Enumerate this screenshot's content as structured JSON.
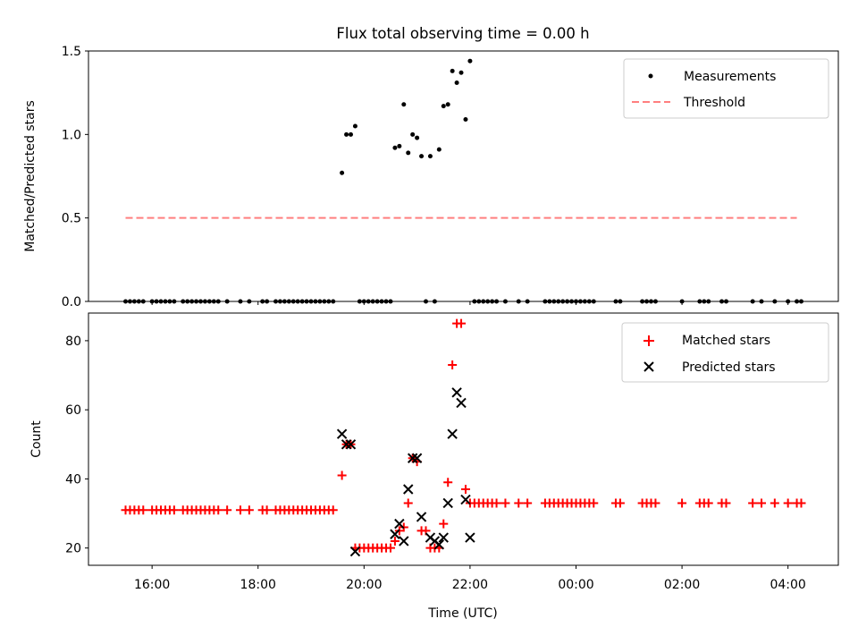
{
  "title": "Flux total observing time = 0.00 h",
  "colors": {
    "measurement": "#000000",
    "threshold": "#ff7f7f",
    "matched": "#ff0000",
    "predicted": "#000000"
  },
  "chart_data": [
    {
      "type": "scatter",
      "title": "Flux total observing time = 0.00 h",
      "xlabel": "",
      "ylabel": "Matched/Predicted stars",
      "ylim": [
        0,
        1.5
      ],
      "yticks": [
        "0.0",
        "0.5",
        "1.0",
        "1.5"
      ],
      "legend": {
        "placement": "top-right",
        "entries": [
          "Measurements",
          "Threshold"
        ]
      },
      "threshold": {
        "name": "Threshold",
        "value": 0.5,
        "x_start": "15:30",
        "x_end": "04:10"
      },
      "series": [
        {
          "name": "Measurements",
          "points": [
            [
              "15:30",
              0
            ],
            [
              "15:35",
              0
            ],
            [
              "15:40",
              0
            ],
            [
              "15:45",
              0
            ],
            [
              "15:50",
              0
            ],
            [
              "16:00",
              0
            ],
            [
              "16:05",
              0
            ],
            [
              "16:10",
              0
            ],
            [
              "16:15",
              0
            ],
            [
              "16:20",
              0
            ],
            [
              "16:25",
              0
            ],
            [
              "16:35",
              0
            ],
            [
              "16:40",
              0
            ],
            [
              "16:45",
              0
            ],
            [
              "16:50",
              0
            ],
            [
              "16:55",
              0
            ],
            [
              "17:00",
              0
            ],
            [
              "17:05",
              0
            ],
            [
              "17:10",
              0
            ],
            [
              "17:15",
              0
            ],
            [
              "17:25",
              0
            ],
            [
              "17:40",
              0
            ],
            [
              "17:50",
              0
            ],
            [
              "18:05",
              0
            ],
            [
              "18:10",
              0
            ],
            [
              "18:20",
              0
            ],
            [
              "18:25",
              0
            ],
            [
              "18:30",
              0
            ],
            [
              "18:35",
              0
            ],
            [
              "18:40",
              0
            ],
            [
              "18:45",
              0
            ],
            [
              "18:50",
              0
            ],
            [
              "18:55",
              0
            ],
            [
              "19:00",
              0
            ],
            [
              "19:05",
              0
            ],
            [
              "19:10",
              0
            ],
            [
              "19:15",
              0
            ],
            [
              "19:20",
              0
            ],
            [
              "19:25",
              0
            ],
            [
              "19:35",
              0.77
            ],
            [
              "19:40",
              1.0
            ],
            [
              "19:45",
              1.0
            ],
            [
              "19:50",
              1.05
            ],
            [
              "19:55",
              0
            ],
            [
              "20:00",
              0
            ],
            [
              "20:05",
              0
            ],
            [
              "20:10",
              0
            ],
            [
              "20:15",
              0
            ],
            [
              "20:20",
              0
            ],
            [
              "20:25",
              0
            ],
            [
              "20:30",
              0
            ],
            [
              "20:35",
              0.92
            ],
            [
              "20:40",
              0.93
            ],
            [
              "20:45",
              1.18
            ],
            [
              "20:50",
              0.89
            ],
            [
              "20:55",
              1.0
            ],
            [
              "21:00",
              0.98
            ],
            [
              "21:05",
              0.87
            ],
            [
              "21:10",
              0
            ],
            [
              "21:15",
              0.87
            ],
            [
              "21:20",
              0
            ],
            [
              "21:25",
              0.91
            ],
            [
              "21:30",
              1.17
            ],
            [
              "21:35",
              1.18
            ],
            [
              "21:40",
              1.38
            ],
            [
              "21:45",
              1.31
            ],
            [
              "21:50",
              1.37
            ],
            [
              "21:55",
              1.09
            ],
            [
              "22:00",
              1.44
            ],
            [
              "22:05",
              0
            ],
            [
              "22:10",
              0
            ],
            [
              "22:15",
              0
            ],
            [
              "22:20",
              0
            ],
            [
              "22:25",
              0
            ],
            [
              "22:30",
              0
            ],
            [
              "22:40",
              0
            ],
            [
              "22:55",
              0
            ],
            [
              "23:05",
              0
            ],
            [
              "23:25",
              0
            ],
            [
              "23:30",
              0
            ],
            [
              "23:35",
              0
            ],
            [
              "23:40",
              0
            ],
            [
              "23:45",
              0
            ],
            [
              "23:50",
              0
            ],
            [
              "23:55",
              0
            ],
            [
              "00:00",
              0
            ],
            [
              "00:05",
              0
            ],
            [
              "00:10",
              0
            ],
            [
              "00:15",
              0
            ],
            [
              "00:20",
              0
            ],
            [
              "00:45",
              0
            ],
            [
              "00:50",
              0
            ],
            [
              "01:15",
              0
            ],
            [
              "01:20",
              0
            ],
            [
              "01:25",
              0
            ],
            [
              "01:30",
              0
            ],
            [
              "02:00",
              0
            ],
            [
              "02:20",
              0
            ],
            [
              "02:25",
              0
            ],
            [
              "02:30",
              0
            ],
            [
              "02:45",
              0
            ],
            [
              "02:50",
              0
            ],
            [
              "03:20",
              0
            ],
            [
              "03:30",
              0
            ],
            [
              "03:45",
              0
            ],
            [
              "04:00",
              0
            ],
            [
              "04:10",
              0
            ],
            [
              "04:15",
              0
            ]
          ]
        }
      ]
    },
    {
      "type": "scatter",
      "title": "",
      "xlabel": "Time (UTC)",
      "ylabel": "Count",
      "ylim": [
        15,
        88
      ],
      "yticks": [
        "20",
        "40",
        "60",
        "80"
      ],
      "xticks": [
        "16:00",
        "18:00",
        "20:00",
        "22:00",
        "00:00",
        "02:00",
        "04:00"
      ],
      "legend": {
        "placement": "top-right",
        "entries": [
          "Matched stars",
          "Predicted stars"
        ]
      },
      "series": [
        {
          "name": "Matched stars",
          "points": [
            [
              "15:30",
              31
            ],
            [
              "15:35",
              31
            ],
            [
              "15:40",
              31
            ],
            [
              "15:45",
              31
            ],
            [
              "15:50",
              31
            ],
            [
              "16:00",
              31
            ],
            [
              "16:05",
              31
            ],
            [
              "16:10",
              31
            ],
            [
              "16:15",
              31
            ],
            [
              "16:20",
              31
            ],
            [
              "16:25",
              31
            ],
            [
              "16:35",
              31
            ],
            [
              "16:40",
              31
            ],
            [
              "16:45",
              31
            ],
            [
              "16:50",
              31
            ],
            [
              "16:55",
              31
            ],
            [
              "17:00",
              31
            ],
            [
              "17:05",
              31
            ],
            [
              "17:10",
              31
            ],
            [
              "17:15",
              31
            ],
            [
              "17:25",
              31
            ],
            [
              "17:40",
              31
            ],
            [
              "17:50",
              31
            ],
            [
              "18:05",
              31
            ],
            [
              "18:10",
              31
            ],
            [
              "18:20",
              31
            ],
            [
              "18:25",
              31
            ],
            [
              "18:30",
              31
            ],
            [
              "18:35",
              31
            ],
            [
              "18:40",
              31
            ],
            [
              "18:45",
              31
            ],
            [
              "18:50",
              31
            ],
            [
              "18:55",
              31
            ],
            [
              "19:00",
              31
            ],
            [
              "19:05",
              31
            ],
            [
              "19:10",
              31
            ],
            [
              "19:15",
              31
            ],
            [
              "19:20",
              31
            ],
            [
              "19:25",
              31
            ],
            [
              "19:35",
              41
            ],
            [
              "19:40",
              50
            ],
            [
              "19:45",
              50
            ],
            [
              "19:50",
              20
            ],
            [
              "19:55",
              20
            ],
            [
              "20:00",
              20
            ],
            [
              "20:05",
              20
            ],
            [
              "20:10",
              20
            ],
            [
              "20:15",
              20
            ],
            [
              "20:20",
              20
            ],
            [
              "20:25",
              20
            ],
            [
              "20:30",
              20
            ],
            [
              "20:35",
              22
            ],
            [
              "20:40",
              25
            ],
            [
              "20:45",
              26
            ],
            [
              "20:50",
              33
            ],
            [
              "20:55",
              46
            ],
            [
              "21:00",
              45
            ],
            [
              "21:05",
              25
            ],
            [
              "21:10",
              25
            ],
            [
              "21:15",
              20
            ],
            [
              "21:20",
              20
            ],
            [
              "21:25",
              20
            ],
            [
              "21:30",
              27
            ],
            [
              "21:35",
              39
            ],
            [
              "21:40",
              73
            ],
            [
              "21:45",
              85
            ],
            [
              "21:50",
              85
            ],
            [
              "21:55",
              37
            ],
            [
              "22:00",
              33
            ],
            [
              "22:05",
              33
            ],
            [
              "22:10",
              33
            ],
            [
              "22:15",
              33
            ],
            [
              "22:20",
              33
            ],
            [
              "22:25",
              33
            ],
            [
              "22:30",
              33
            ],
            [
              "22:40",
              33
            ],
            [
              "22:55",
              33
            ],
            [
              "23:05",
              33
            ],
            [
              "23:25",
              33
            ],
            [
              "23:30",
              33
            ],
            [
              "23:35",
              33
            ],
            [
              "23:40",
              33
            ],
            [
              "23:45",
              33
            ],
            [
              "23:50",
              33
            ],
            [
              "23:55",
              33
            ],
            [
              "00:00",
              33
            ],
            [
              "00:05",
              33
            ],
            [
              "00:10",
              33
            ],
            [
              "00:15",
              33
            ],
            [
              "00:20",
              33
            ],
            [
              "00:45",
              33
            ],
            [
              "00:50",
              33
            ],
            [
              "01:15",
              33
            ],
            [
              "01:20",
              33
            ],
            [
              "01:25",
              33
            ],
            [
              "01:30",
              33
            ],
            [
              "02:00",
              33
            ],
            [
              "02:20",
              33
            ],
            [
              "02:25",
              33
            ],
            [
              "02:30",
              33
            ],
            [
              "02:45",
              33
            ],
            [
              "02:50",
              33
            ],
            [
              "03:20",
              33
            ],
            [
              "03:30",
              33
            ],
            [
              "03:45",
              33
            ],
            [
              "04:00",
              33
            ],
            [
              "04:10",
              33
            ],
            [
              "04:15",
              33
            ]
          ]
        },
        {
          "name": "Predicted stars",
          "points": [
            [
              "19:35",
              53
            ],
            [
              "19:40",
              50
            ],
            [
              "19:45",
              50
            ],
            [
              "19:50",
              19
            ],
            [
              "20:35",
              24
            ],
            [
              "20:40",
              27
            ],
            [
              "20:45",
              22
            ],
            [
              "20:50",
              37
            ],
            [
              "20:55",
              46
            ],
            [
              "21:00",
              46
            ],
            [
              "21:05",
              29
            ],
            [
              "21:15",
              23
            ],
            [
              "21:20",
              22
            ],
            [
              "21:25",
              21
            ],
            [
              "21:30",
              23
            ],
            [
              "21:35",
              33
            ],
            [
              "21:40",
              53
            ],
            [
              "21:45",
              65
            ],
            [
              "21:50",
              62
            ],
            [
              "21:55",
              34
            ],
            [
              "22:00",
              23
            ]
          ]
        }
      ]
    }
  ]
}
